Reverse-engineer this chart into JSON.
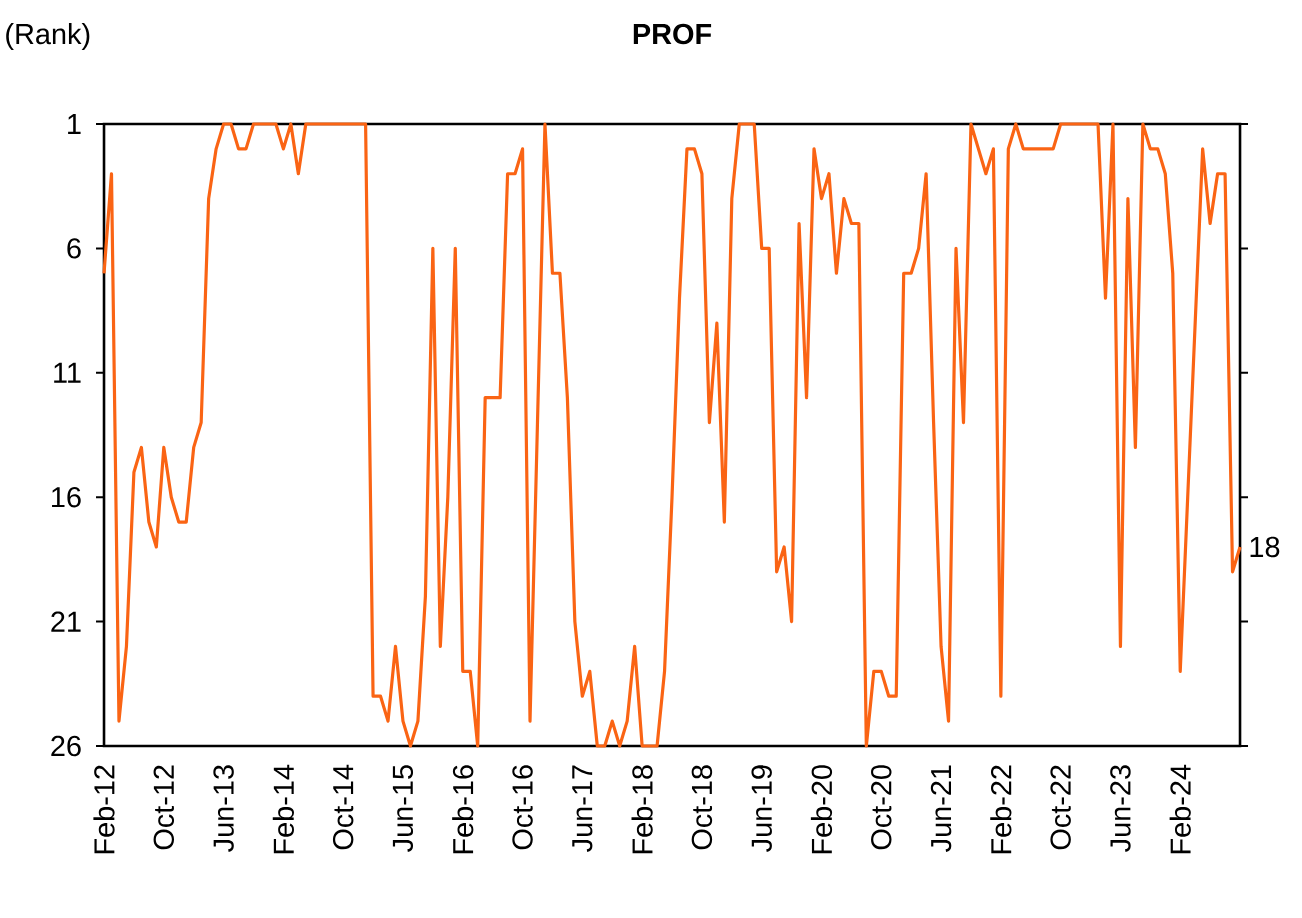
{
  "chart_data": {
    "type": "line",
    "title": "PROF",
    "ylabel": "(Rank)",
    "x": [
      "2012-02",
      "2012-03",
      "2012-04",
      "2012-05",
      "2012-06",
      "2012-07",
      "2012-08",
      "2012-09",
      "2012-10",
      "2012-11",
      "2012-12",
      "2013-01",
      "2013-02",
      "2013-03",
      "2013-04",
      "2013-05",
      "2013-06",
      "2013-07",
      "2013-08",
      "2013-09",
      "2013-10",
      "2013-11",
      "2013-12",
      "2014-01",
      "2014-02",
      "2014-03",
      "2014-04",
      "2014-05",
      "2014-06",
      "2014-07",
      "2014-08",
      "2014-09",
      "2014-10",
      "2014-11",
      "2014-12",
      "2015-01",
      "2015-02",
      "2015-03",
      "2015-04",
      "2015-05",
      "2015-06",
      "2015-07",
      "2015-08",
      "2015-09",
      "2015-10",
      "2015-11",
      "2015-12",
      "2016-01",
      "2016-02",
      "2016-03",
      "2016-04",
      "2016-05",
      "2016-06",
      "2016-07",
      "2016-08",
      "2016-09",
      "2016-10",
      "2016-11",
      "2016-12",
      "2017-01",
      "2017-02",
      "2017-03",
      "2017-04",
      "2017-05",
      "2017-06",
      "2017-07",
      "2017-08",
      "2017-09",
      "2017-10",
      "2017-11",
      "2017-12",
      "2018-01",
      "2018-02",
      "2018-03",
      "2018-04",
      "2018-05",
      "2018-06",
      "2018-07",
      "2018-08",
      "2018-09",
      "2018-10",
      "2018-11",
      "2018-12",
      "2019-01",
      "2019-02",
      "2019-03",
      "2019-04",
      "2019-05",
      "2019-06",
      "2019-07",
      "2019-08",
      "2019-09",
      "2019-10",
      "2019-11",
      "2019-12",
      "2020-01",
      "2020-02",
      "2020-03",
      "2020-04",
      "2020-05",
      "2020-06",
      "2020-07",
      "2020-08",
      "2020-09",
      "2020-10",
      "2020-11",
      "2020-12",
      "2021-01",
      "2021-02",
      "2021-03",
      "2021-04",
      "2021-05",
      "2021-06",
      "2021-07",
      "2021-08",
      "2021-09",
      "2021-10",
      "2021-11",
      "2021-12",
      "2022-01",
      "2022-02",
      "2022-03",
      "2022-04",
      "2022-05",
      "2022-06",
      "2022-07",
      "2022-08",
      "2022-09",
      "2022-10",
      "2022-11",
      "2022-12",
      "2023-01",
      "2023-02",
      "2023-03",
      "2023-04",
      "2023-05",
      "2023-06",
      "2023-07",
      "2023-08",
      "2023-09",
      "2023-10",
      "2023-11",
      "2023-12",
      "2024-01",
      "2024-02",
      "2024-03",
      "2024-04",
      "2024-05",
      "2024-06",
      "2024-07",
      "2024-08",
      "2024-09",
      "2024-10"
    ],
    "series": [
      {
        "color": "#fa6414",
        "values": [
          7,
          3,
          25,
          22,
          15,
          14,
          17,
          18,
          14,
          16,
          17,
          17,
          14,
          13,
          4,
          2,
          1,
          1,
          2,
          2,
          1,
          1,
          1,
          1,
          2,
          1,
          3,
          1,
          1,
          1,
          1,
          1,
          1,
          1,
          1,
          1,
          24,
          24,
          25,
          22,
          25,
          26,
          25,
          20,
          6,
          22,
          16,
          6,
          23,
          23,
          26,
          12,
          12,
          12,
          3,
          3,
          2,
          25,
          13,
          1,
          7,
          7,
          12,
          21,
          24,
          23,
          26,
          26,
          25,
          26,
          25,
          22,
          26,
          26,
          26,
          23,
          16,
          8,
          2,
          2,
          3,
          13,
          9,
          17,
          4,
          1,
          1,
          1,
          6,
          6,
          19,
          18,
          21,
          5,
          12,
          2,
          4,
          3,
          7,
          4,
          5,
          5,
          26,
          23,
          23,
          24,
          24,
          7,
          7,
          6,
          3,
          13,
          22,
          25,
          6,
          13,
          1,
          2,
          3,
          2,
          24,
          2,
          1,
          2,
          2,
          2,
          2,
          2,
          1,
          1,
          1,
          1,
          1,
          1,
          8,
          1,
          22,
          4,
          14,
          1,
          2,
          2,
          3,
          7,
          23,
          16,
          9,
          2,
          5,
          3,
          3,
          19,
          18
        ]
      }
    ],
    "xlim": [
      "2012-02",
      "2024-10"
    ],
    "ylim": [
      26,
      1
    ],
    "xticks": [
      {
        "value": "2012-02",
        "label": "Feb-12"
      },
      {
        "value": "2012-10",
        "label": "Oct-12"
      },
      {
        "value": "2013-06",
        "label": "Jun-13"
      },
      {
        "value": "2014-02",
        "label": "Feb-14"
      },
      {
        "value": "2014-10",
        "label": "Oct-14"
      },
      {
        "value": "2015-06",
        "label": "Jun-15"
      },
      {
        "value": "2016-02",
        "label": "Feb-16"
      },
      {
        "value": "2016-10",
        "label": "Oct-16"
      },
      {
        "value": "2017-06",
        "label": "Jun-17"
      },
      {
        "value": "2018-02",
        "label": "Feb-18"
      },
      {
        "value": "2018-10",
        "label": "Oct-18"
      },
      {
        "value": "2019-06",
        "label": "Jun-19"
      },
      {
        "value": "2020-02",
        "label": "Feb-20"
      },
      {
        "value": "2020-10",
        "label": "Oct-20"
      },
      {
        "value": "2021-06",
        "label": "Jun-21"
      },
      {
        "value": "2022-02",
        "label": "Feb-22"
      },
      {
        "value": "2022-10",
        "label": "Oct-22"
      },
      {
        "value": "2023-06",
        "label": "Jun-23"
      },
      {
        "value": "2024-02",
        "label": "Feb-24"
      }
    ],
    "yticks": [
      1,
      6,
      11,
      16,
      21,
      26
    ],
    "annotations": [
      {
        "text": "18",
        "x": "2024-10",
        "y": 18
      }
    ],
    "marker": "none",
    "line_style": "solid",
    "grid": false
  }
}
